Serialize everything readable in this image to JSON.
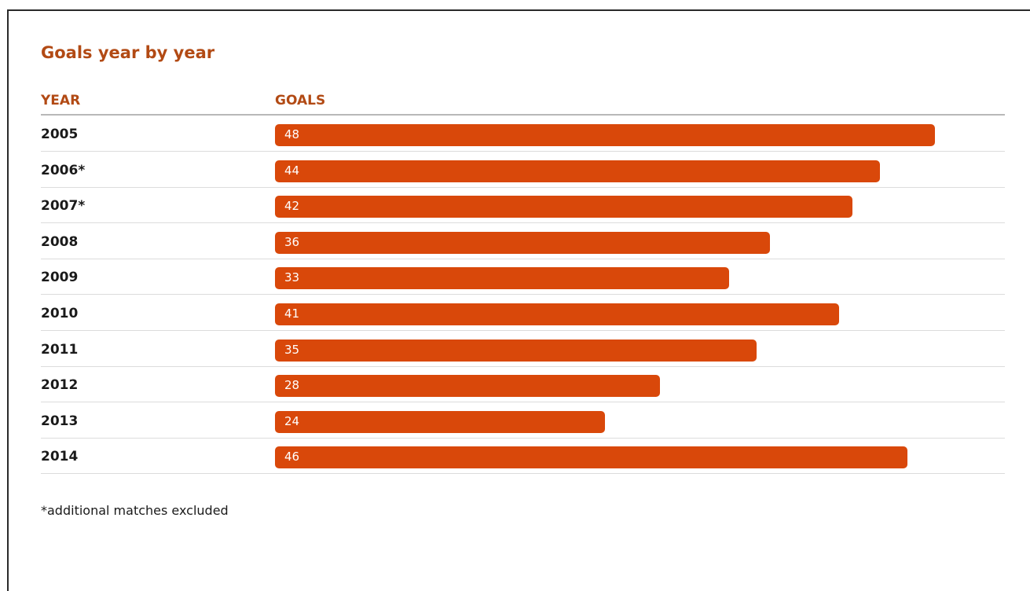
{
  "chart_data": {
    "type": "bar",
    "title": "Goals year by year",
    "column_headers": {
      "category": "YEAR",
      "value": "GOALS"
    },
    "categories": [
      "2005",
      "2006*",
      "2007*",
      "2008",
      "2009",
      "2010",
      "2011",
      "2012",
      "2013",
      "2014"
    ],
    "values": [
      48,
      44,
      42,
      36,
      33,
      41,
      35,
      28,
      24,
      46
    ],
    "orientation": "horizontal",
    "grid": false,
    "legend": "none",
    "footnote": "*additional matches excluded"
  },
  "colors": {
    "bar": "#d9480a",
    "heading": "#b24a14",
    "text": "#1a1a1a"
  }
}
